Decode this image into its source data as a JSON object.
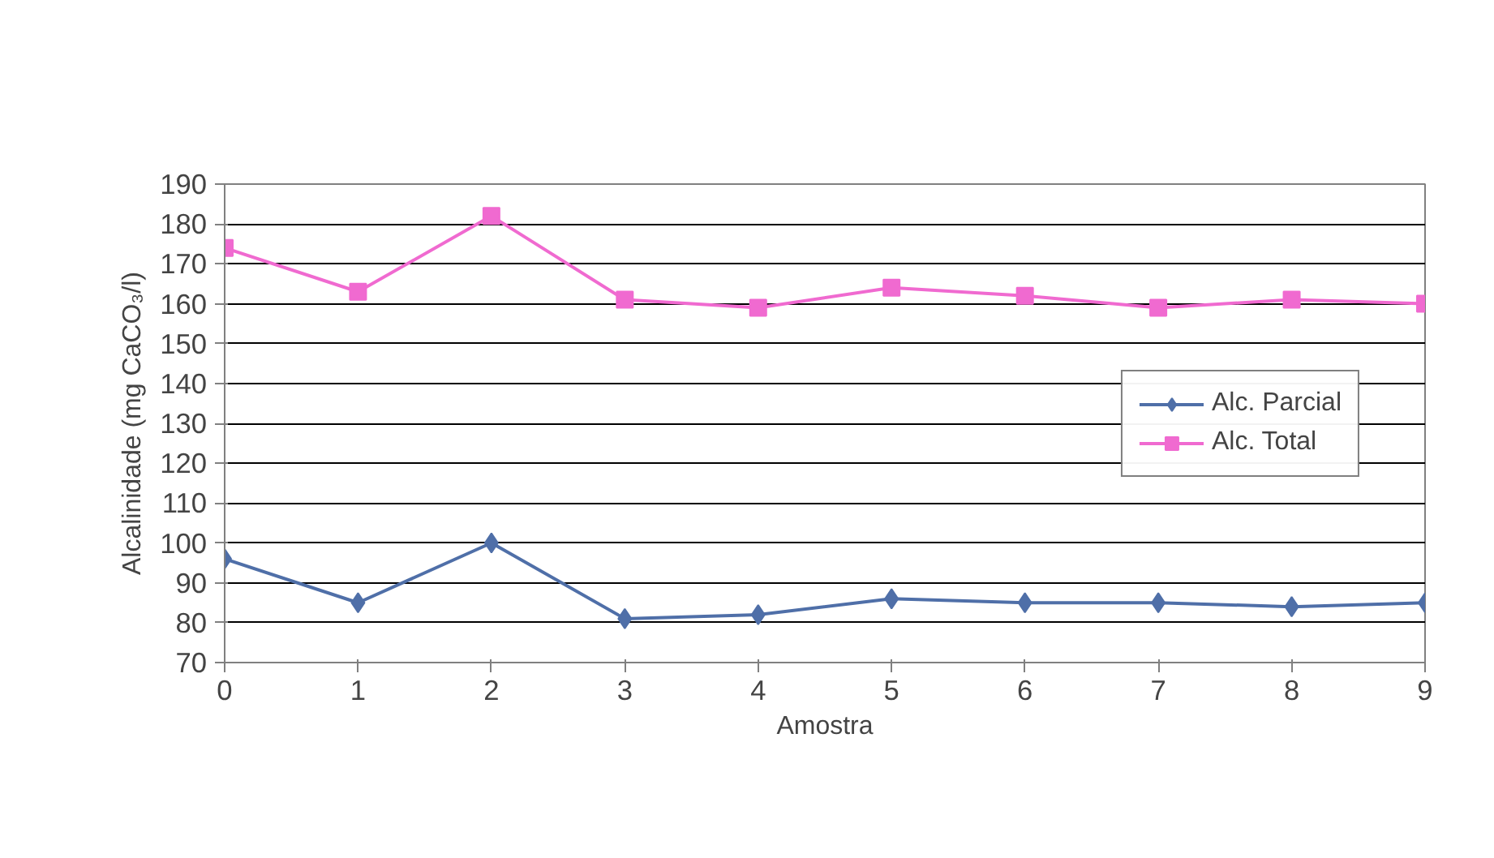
{
  "chart_data": {
    "type": "line",
    "xlabel": "Amostra",
    "ylabel": "Alcalinidade (mg CaCO₃/l)",
    "x": [
      0,
      1,
      2,
      3,
      4,
      5,
      6,
      7,
      8,
      9
    ],
    "series": [
      {
        "name": "Alc. Parcial",
        "color": "#4f6fa8",
        "marker": "diamond",
        "values": [
          96,
          85,
          100,
          81,
          82,
          86,
          85,
          85,
          84,
          85
        ]
      },
      {
        "name": "Alc. Total",
        "color": "#f06ad0",
        "marker": "square",
        "values": [
          174,
          163,
          182,
          161,
          159,
          164,
          162,
          159,
          161,
          160
        ]
      }
    ],
    "xlim": [
      0,
      9
    ],
    "xticks": [
      0,
      1,
      2,
      3,
      4,
      5,
      6,
      7,
      8,
      9
    ],
    "ylim": [
      70,
      190
    ],
    "yticks": [
      70,
      80,
      90,
      100,
      110,
      120,
      130,
      140,
      150,
      160,
      170,
      180,
      190
    ],
    "grid": "y",
    "legend": "right",
    "line_style": "solid"
  }
}
